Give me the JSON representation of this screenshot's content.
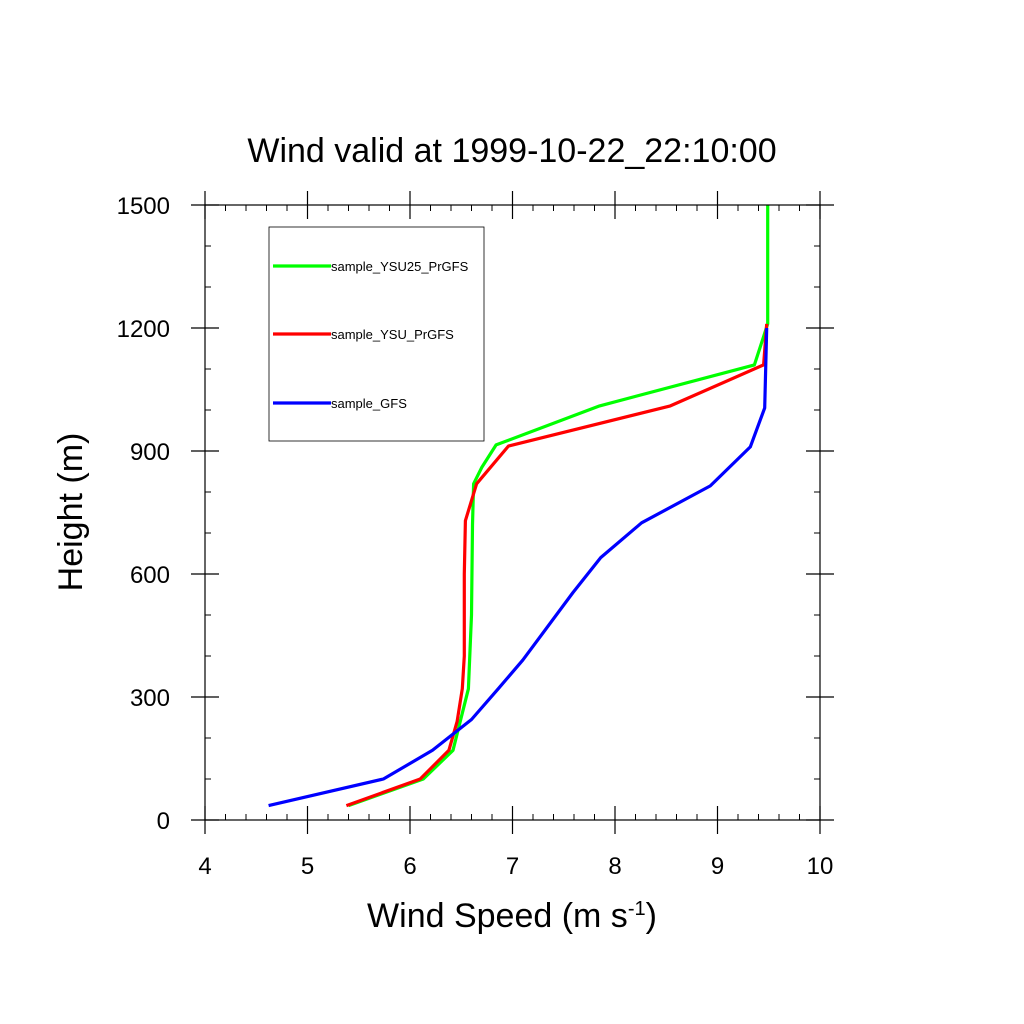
{
  "chart_data": {
    "type": "line",
    "title": "Wind valid at 1999-10-22_22:10:00",
    "xlabel": "Wind Speed (m s",
    "xlabel_sup": "-1",
    "xlabel_end": ")",
    "ylabel": "Height (m)",
    "xlim": [
      4,
      10
    ],
    "ylim": [
      0,
      1500
    ],
    "xticks": [
      4,
      5,
      6,
      7,
      8,
      9,
      10
    ],
    "yticks": [
      0,
      300,
      600,
      900,
      1200,
      1500
    ],
    "x_minor_step": 0.2,
    "y_minor_step": 100,
    "grid": false,
    "legend_position": "top-left",
    "series": [
      {
        "name": "sample_YSU25_PrGFS",
        "color": "#00ff00",
        "x": [
          5.4,
          6.13,
          6.42,
          6.57,
          6.6,
          6.61,
          6.62,
          6.7,
          6.84,
          7.85,
          9.36,
          9.49,
          9.49
        ],
        "y": [
          35,
          100,
          170,
          320,
          500,
          720,
          820,
          860,
          915,
          1010,
          1110,
          1210,
          1500
        ]
      },
      {
        "name": "sample_YSU_PrGFS",
        "color": "#ff0000",
        "x": [
          5.38,
          6.1,
          6.38,
          6.46,
          6.51,
          6.53,
          6.53,
          6.54,
          6.65,
          6.96,
          8.54,
          9.45,
          9.48
        ],
        "y": [
          35,
          100,
          170,
          240,
          320,
          400,
          600,
          730,
          820,
          912,
          1010,
          1110,
          1210
        ]
      },
      {
        "name": "sample_GFS",
        "color": "#0000ff",
        "x": [
          4.62,
          5.74,
          6.22,
          6.6,
          6.86,
          7.1,
          7.59,
          7.86,
          8.26,
          8.93,
          9.32,
          9.46,
          9.48
        ],
        "y": [
          35,
          100,
          170,
          245,
          320,
          390,
          555,
          640,
          725,
          815,
          910,
          1005,
          1200
        ]
      }
    ]
  }
}
